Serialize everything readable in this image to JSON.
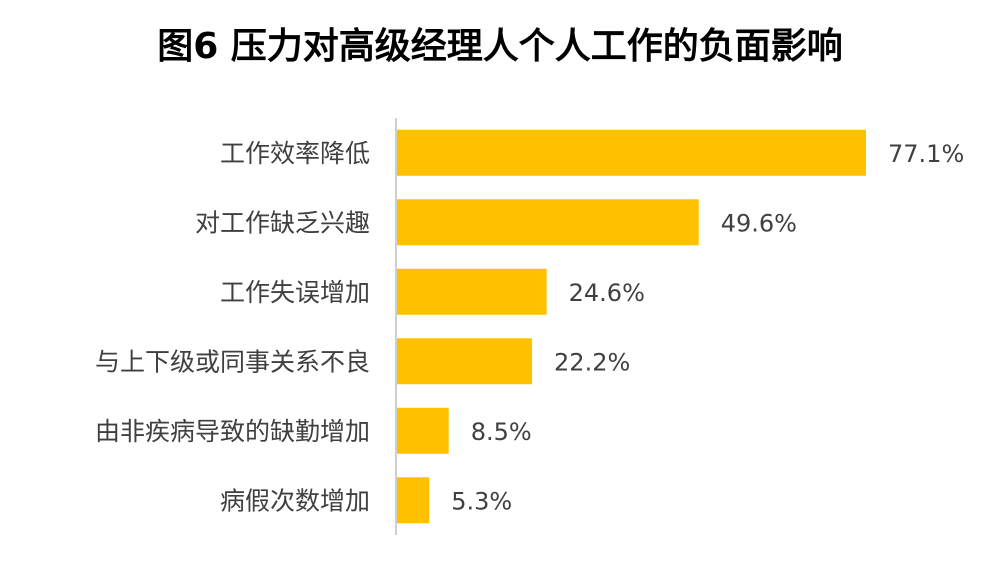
{
  "chart_data": {
    "type": "bar",
    "orientation": "horizontal",
    "title": "图6  压力对高级经理人个人工作的负面影响",
    "categories": [
      "工作效率降低",
      "对工作缺乏兴趣",
      "工作失误增加",
      "与上下级或同事关系不良",
      "由非疾病导致的缺勤增加",
      "病假次数增加"
    ],
    "values": [
      77.1,
      49.6,
      24.6,
      22.2,
      8.5,
      5.3
    ],
    "value_labels": [
      "77.1%",
      "49.6%",
      "24.6%",
      "22.2%",
      "8.5%",
      "5.3%"
    ],
    "color": "#ffc000"
  }
}
